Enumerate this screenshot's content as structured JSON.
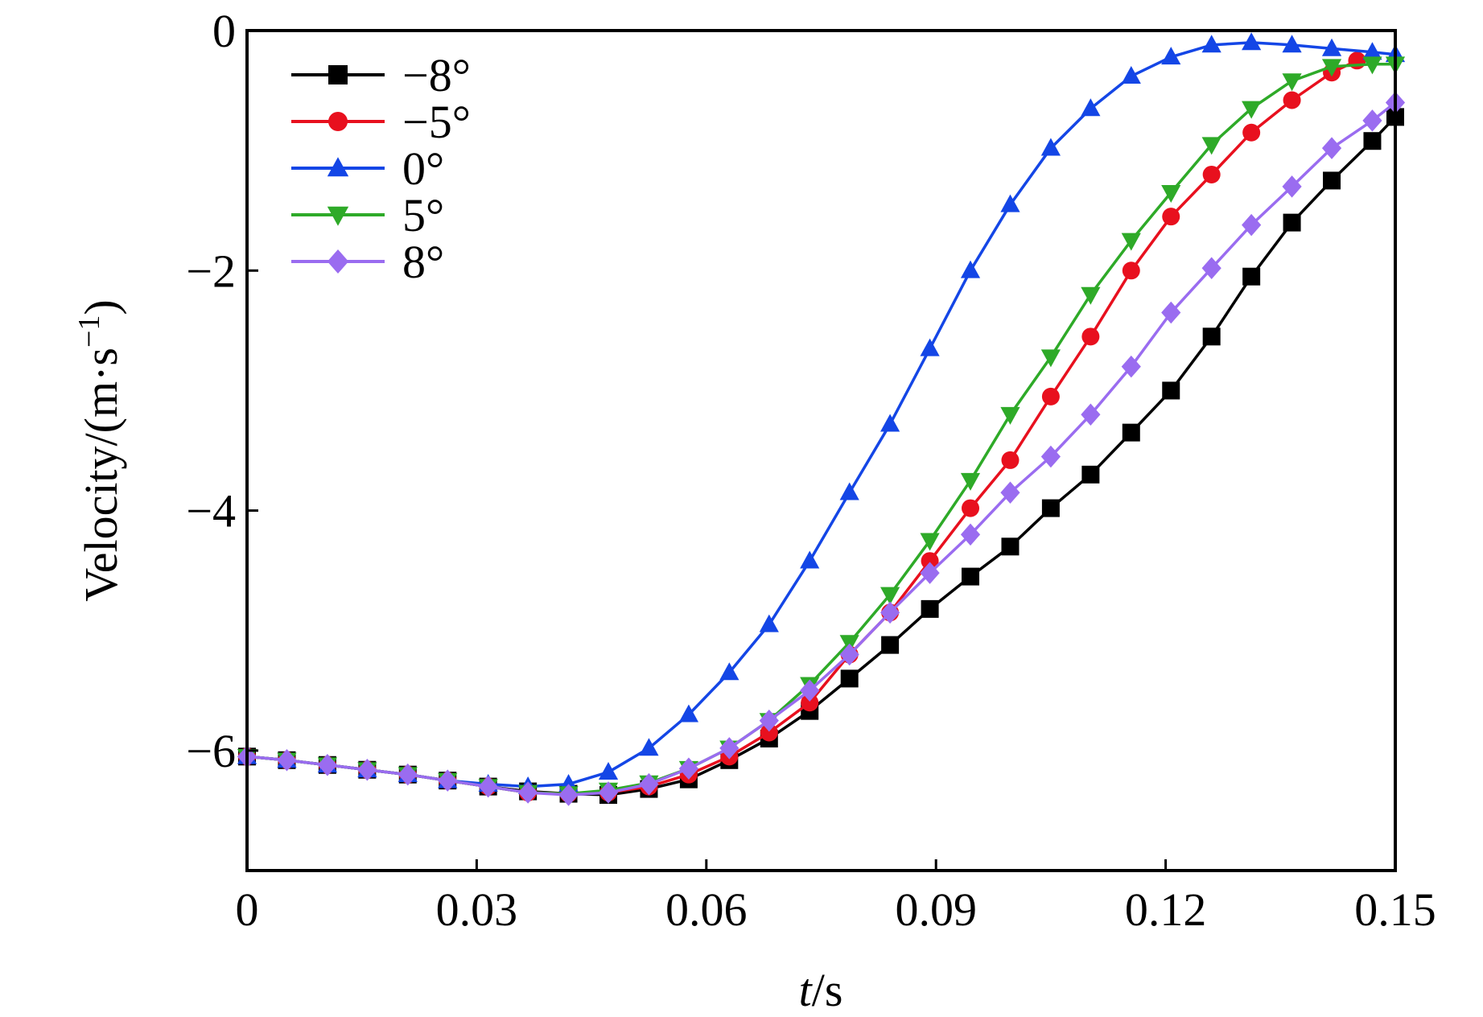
{
  "chart_data": {
    "type": "line",
    "title": "",
    "xlabel_italic": "t",
    "xlabel_unit": "/s",
    "ylabel": "Velocity/(m·s",
    "ylabel_sup": "−1",
    "ylabel_close": ")",
    "xlim": [
      0,
      0.15
    ],
    "ylim": [
      -7,
      0
    ],
    "xticks": [
      0,
      0.03,
      0.06,
      0.09,
      0.12,
      0.15
    ],
    "xtick_labels": [
      "0",
      "0.03",
      "0.06",
      "0.09",
      "0.12",
      "0.15"
    ],
    "yticks": [
      0,
      -2,
      -4,
      -6
    ],
    "ytick_labels": [
      "0",
      "−2",
      "−4",
      "−6"
    ],
    "grid": false,
    "legend_position": "top-left",
    "series": [
      {
        "name": "−8°",
        "color": "#000000",
        "marker": "square",
        "x": [
          0,
          0.0052,
          0.0105,
          0.0157,
          0.021,
          0.0262,
          0.0315,
          0.0367,
          0.042,
          0.0472,
          0.0525,
          0.0577,
          0.063,
          0.0682,
          0.0735,
          0.0787,
          0.084,
          0.0892,
          0.0945,
          0.0997,
          0.105,
          0.1102,
          0.1155,
          0.1207,
          0.126,
          0.1312,
          0.1365,
          0.1417,
          0.147,
          0.15
        ],
        "values": [
          -6.05,
          -6.08,
          -6.12,
          -6.16,
          -6.2,
          -6.25,
          -6.3,
          -6.34,
          -6.36,
          -6.37,
          -6.32,
          -6.24,
          -6.08,
          -5.9,
          -5.67,
          -5.4,
          -5.12,
          -4.82,
          -4.55,
          -4.3,
          -3.98,
          -3.7,
          -3.35,
          -3.0,
          -2.55,
          -2.05,
          -1.6,
          -1.25,
          -0.92,
          -0.72
        ]
      },
      {
        "name": "−5°",
        "color": "#e8101e",
        "marker": "circle",
        "x": [
          0,
          0.0052,
          0.0105,
          0.0157,
          0.021,
          0.0262,
          0.0315,
          0.0367,
          0.042,
          0.0472,
          0.0525,
          0.0577,
          0.063,
          0.0682,
          0.0735,
          0.0787,
          0.084,
          0.0892,
          0.0945,
          0.0997,
          0.105,
          0.1102,
          0.1155,
          0.1207,
          0.126,
          0.1312,
          0.1365,
          0.1417,
          0.145
        ],
        "values": [
          -6.05,
          -6.08,
          -6.12,
          -6.16,
          -6.2,
          -6.25,
          -6.3,
          -6.35,
          -6.36,
          -6.35,
          -6.3,
          -6.2,
          -6.05,
          -5.85,
          -5.6,
          -5.2,
          -4.85,
          -4.42,
          -3.98,
          -3.58,
          -3.05,
          -2.55,
          -2.0,
          -1.55,
          -1.2,
          -0.85,
          -0.58,
          -0.35,
          -0.25
        ]
      },
      {
        "name": "0°",
        "color": "#1446e6",
        "marker": "triangle-up",
        "x": [
          0,
          0.0052,
          0.0105,
          0.0157,
          0.021,
          0.0262,
          0.0315,
          0.0367,
          0.042,
          0.0472,
          0.0525,
          0.0577,
          0.063,
          0.0682,
          0.0735,
          0.0787,
          0.084,
          0.0892,
          0.0945,
          0.0997,
          0.105,
          0.1102,
          0.1155,
          0.1207,
          0.126,
          0.1312,
          0.1365,
          0.1417,
          0.147,
          0.15
        ],
        "values": [
          -6.05,
          -6.08,
          -6.12,
          -6.16,
          -6.2,
          -6.25,
          -6.28,
          -6.3,
          -6.28,
          -6.18,
          -5.98,
          -5.7,
          -5.35,
          -4.95,
          -4.42,
          -3.85,
          -3.28,
          -2.65,
          -2.0,
          -1.45,
          -0.98,
          -0.65,
          -0.38,
          -0.22,
          -0.12,
          -0.1,
          -0.12,
          -0.15,
          -0.18,
          -0.2
        ]
      },
      {
        "name": "5°",
        "color": "#2eaa28",
        "marker": "triangle-down",
        "x": [
          0,
          0.0052,
          0.0105,
          0.0157,
          0.021,
          0.0262,
          0.0315,
          0.0367,
          0.042,
          0.0472,
          0.0525,
          0.0577,
          0.063,
          0.0682,
          0.0735,
          0.0787,
          0.084,
          0.0892,
          0.0945,
          0.0997,
          0.105,
          0.1102,
          0.1155,
          0.1207,
          0.126,
          0.1312,
          0.1365,
          0.1417,
          0.147,
          0.15
        ],
        "values": [
          -6.05,
          -6.08,
          -6.12,
          -6.16,
          -6.2,
          -6.25,
          -6.3,
          -6.35,
          -6.36,
          -6.33,
          -6.27,
          -6.15,
          -5.98,
          -5.75,
          -5.45,
          -5.1,
          -4.7,
          -4.25,
          -3.75,
          -3.2,
          -2.72,
          -2.2,
          -1.75,
          -1.35,
          -0.95,
          -0.65,
          -0.42,
          -0.3,
          -0.28,
          -0.28
        ]
      },
      {
        "name": "8°",
        "color": "#9a6cf0",
        "marker": "diamond",
        "x": [
          0,
          0.0052,
          0.0105,
          0.0157,
          0.021,
          0.0262,
          0.0315,
          0.0367,
          0.042,
          0.0472,
          0.0525,
          0.0577,
          0.063,
          0.0682,
          0.0735,
          0.0787,
          0.084,
          0.0892,
          0.0945,
          0.0997,
          0.105,
          0.1102,
          0.1155,
          0.1207,
          0.126,
          0.1312,
          0.1365,
          0.1417,
          0.147,
          0.15
        ],
        "values": [
          -6.05,
          -6.08,
          -6.12,
          -6.16,
          -6.2,
          -6.25,
          -6.3,
          -6.35,
          -6.37,
          -6.35,
          -6.28,
          -6.15,
          -5.98,
          -5.75,
          -5.5,
          -5.2,
          -4.85,
          -4.52,
          -4.2,
          -3.85,
          -3.55,
          -3.2,
          -2.8,
          -2.35,
          -1.98,
          -1.62,
          -1.3,
          -0.98,
          -0.75,
          -0.6
        ]
      }
    ]
  }
}
